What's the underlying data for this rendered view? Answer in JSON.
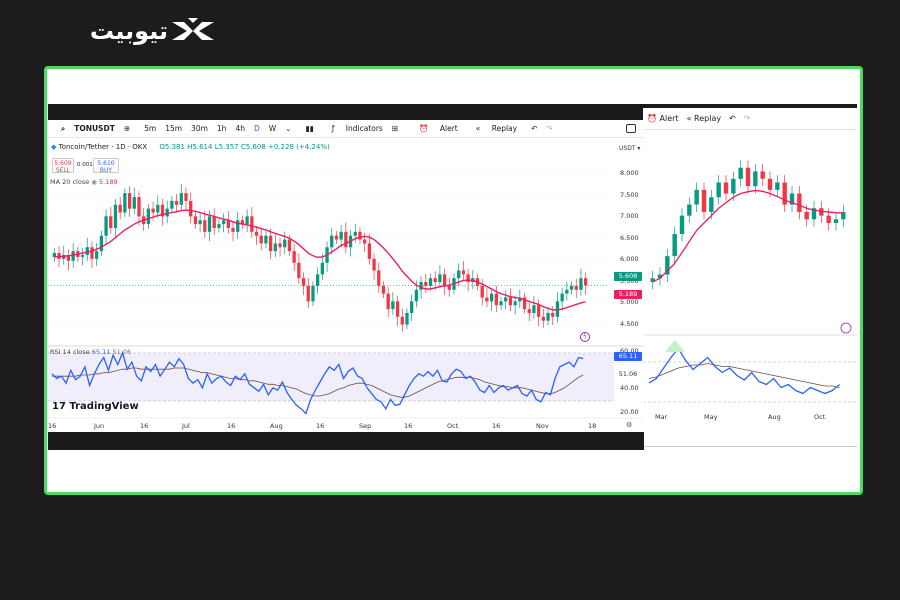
{
  "brand": {
    "name": "تیوبیت"
  },
  "toolbar": {
    "symbol": "TONUSDT",
    "intervals": [
      "5m",
      "15m",
      "30m",
      "1h",
      "4h",
      "D",
      "W"
    ],
    "active_interval": "D",
    "indicators": "Indicators",
    "alert": "Alert",
    "replay": "Replay"
  },
  "back_toolbar": {
    "alert": "Alert",
    "replay": "Replay"
  },
  "legend": {
    "title": "Toncoin/Tether · 1D · OKX",
    "ohlc": "O5.381 H5.614 L5.357 C5.608 +0.228 (+4.24%)",
    "sell_price": "5.609",
    "sell_label": "SELL",
    "spread": "0.001",
    "buy_price": "5.610",
    "buy_label": "BUY",
    "ma_label": "MA 20 close",
    "ma_value": "5.189",
    "currency": "USDT"
  },
  "rsi_legend": {
    "label": "RSI 14 close",
    "rsi": "65.11",
    "ma": "51.06"
  },
  "watermark": "TradingView",
  "colors": {
    "up": "#089981",
    "down": "#f23645",
    "ma": "#e91e63",
    "rsi": "#2962ff",
    "frame": "#4cd964"
  },
  "chart_data": [
    {
      "type": "candlestick",
      "title": "Toncoin/Tether · 1D · OKX",
      "ylim": [
        4.2,
        8.6
      ],
      "price_ticks": [
        "8.000",
        "7.500",
        "7.000",
        "6.500",
        "6.000",
        "5.500",
        "5.000",
        "4.500"
      ],
      "x_ticks": [
        "16",
        "Jun",
        "16",
        "Jul",
        "16",
        "Aug",
        "16",
        "Sep",
        "16",
        "Oct",
        "16",
        "Nov",
        "18"
      ],
      "last_price": "5.608",
      "ma_value": "5.189",
      "close_path": [
        6.45,
        6.3,
        6.4,
        6.25,
        6.5,
        6.35,
        6.4,
        6.6,
        6.3,
        6.5,
        6.9,
        7.4,
        7.1,
        7.7,
        7.5,
        8.0,
        7.6,
        7.9,
        7.4,
        7.2,
        7.6,
        7.5,
        7.7,
        7.4,
        7.6,
        7.8,
        7.7,
        8.0,
        7.8,
        7.4,
        7.2,
        7.3,
        7.0,
        7.4,
        7.1,
        7.2,
        7.3,
        7.1,
        7.0,
        7.3,
        7.2,
        7.4,
        7.0,
        6.9,
        6.7,
        6.9,
        6.5,
        6.7,
        6.6,
        6.8,
        6.5,
        6.2,
        5.8,
        5.6,
        5.2,
        5.6,
        5.9,
        6.2,
        6.6,
        6.9,
        6.8,
        7.0,
        6.6,
        6.9,
        7.0,
        6.8,
        6.7,
        6.3,
        6.0,
        5.6,
        5.4,
        5.0,
        5.2,
        4.8,
        4.6,
        4.9,
        5.2,
        5.5,
        5.7,
        5.6,
        5.8,
        5.7,
        5.9,
        5.6,
        5.5,
        5.8,
        6.0,
        5.9,
        5.7,
        5.8,
        5.6,
        5.3,
        5.2,
        5.4,
        5.1,
        5.2,
        5.3,
        5.1,
        5.2,
        5.3,
        5.0,
        4.9,
        5.1,
        4.8,
        4.7,
        4.9,
        4.8,
        5.2,
        5.4,
        5.5,
        5.6,
        5.5,
        5.8,
        5.61
      ],
      "ma_path": [
        6.35,
        6.36,
        6.37,
        6.38,
        6.4,
        6.42,
        6.45,
        6.48,
        6.5,
        6.55,
        6.6,
        6.68,
        6.75,
        6.85,
        6.95,
        7.05,
        7.12,
        7.2,
        7.26,
        7.3,
        7.34,
        7.38,
        7.42,
        7.45,
        7.47,
        7.5,
        7.52,
        7.55,
        7.56,
        7.55,
        7.53,
        7.5,
        7.46,
        7.43,
        7.4,
        7.36,
        7.33,
        7.3,
        7.26,
        7.22,
        7.2,
        7.18,
        7.15,
        7.12,
        7.08,
        7.05,
        7.0,
        6.96,
        6.92,
        6.88,
        6.83,
        6.76,
        6.67,
        6.56,
        6.45,
        6.38,
        6.34,
        6.35,
        6.4,
        6.48,
        6.56,
        6.65,
        6.7,
        6.76,
        6.82,
        6.86,
        6.88,
        6.86,
        6.8,
        6.7,
        6.58,
        6.45,
        6.3,
        6.15,
        5.98,
        5.85,
        5.72,
        5.62,
        5.56,
        5.52,
        5.52,
        5.55,
        5.58,
        5.6,
        5.62,
        5.66,
        5.7,
        5.74,
        5.75,
        5.74,
        5.7,
        5.65,
        5.58,
        5.52,
        5.45,
        5.4,
        5.36,
        5.32,
        5.3,
        5.28,
        5.24,
        5.2,
        5.16,
        5.12,
        5.06,
        5.02,
        4.98,
        4.98,
        5.0,
        5.04,
        5.08,
        5.12,
        5.16,
        5.19
      ]
    },
    {
      "type": "line",
      "title": "RSI 14 close",
      "ylim": [
        15,
        75
      ],
      "y_ticks": [
        "60.00",
        "40.00",
        "20.00"
      ],
      "rsi_value": "65.11",
      "rsi_ma_value": "51.06",
      "rsi_path": [
        52,
        48,
        50,
        44,
        55,
        47,
        50,
        58,
        42,
        52,
        60,
        66,
        55,
        68,
        60,
        70,
        56,
        62,
        50,
        46,
        58,
        54,
        60,
        50,
        56,
        62,
        58,
        65,
        60,
        48,
        44,
        47,
        40,
        52,
        44,
        48,
        50,
        45,
        42,
        50,
        47,
        52,
        43,
        40,
        37,
        43,
        34,
        40,
        38,
        45,
        36,
        30,
        25,
        22,
        18,
        30,
        38,
        45,
        52,
        58,
        55,
        60,
        48,
        54,
        57,
        50,
        48,
        40,
        35,
        30,
        28,
        22,
        30,
        25,
        26,
        34,
        42,
        48,
        52,
        50,
        54,
        50,
        55,
        46,
        45,
        52,
        56,
        54,
        48,
        50,
        45,
        38,
        36,
        42,
        36,
        40,
        42,
        38,
        40,
        42,
        35,
        33,
        38,
        30,
        28,
        36,
        34,
        48,
        58,
        60,
        62,
        58,
        66,
        65
      ],
      "rsi_ma_path": [
        50,
        50,
        50,
        50,
        50,
        50,
        51,
        51,
        51,
        52,
        52,
        53,
        53,
        54,
        55,
        56,
        56,
        57,
        57,
        56,
        56,
        56,
        56,
        56,
        56,
        56,
        57,
        57,
        57,
        56,
        55,
        54,
        53,
        53,
        52,
        51,
        50,
        49,
        48,
        48,
        47,
        47,
        46,
        46,
        45,
        44,
        43,
        43,
        42,
        42,
        41,
        40,
        39,
        37,
        35,
        34,
        33,
        33,
        34,
        35,
        37,
        39,
        40,
        42,
        43,
        44,
        44,
        43,
        42,
        40,
        38,
        36,
        34,
        33,
        32,
        32,
        33,
        35,
        37,
        39,
        41,
        43,
        45,
        46,
        47,
        48,
        49,
        49,
        49,
        49,
        48,
        47,
        45,
        44,
        43,
        42,
        41,
        41,
        40,
        40,
        40,
        39,
        38,
        37,
        36,
        35,
        35,
        36,
        38,
        40,
        43,
        46,
        49,
        51.06
      ]
    },
    {
      "type": "candlestick",
      "x_ticks": [
        "Mar",
        "May",
        "Aug",
        "Oct"
      ],
      "close_path": [
        5.2,
        5.3,
        5.8,
        6.4,
        6.9,
        7.2,
        7.6,
        7.0,
        7.4,
        7.8,
        7.5,
        7.9,
        8.2,
        7.7,
        8.1,
        7.9,
        7.6,
        7.8,
        7.2,
        7.5,
        7.0,
        6.8,
        7.1,
        6.9,
        6.7,
        6.8,
        7.0
      ],
      "ma_path": [
        5.1,
        5.2,
        5.4,
        5.6,
        5.9,
        6.2,
        6.5,
        6.7,
        6.9,
        7.1,
        7.25,
        7.4,
        7.5,
        7.55,
        7.58,
        7.56,
        7.5,
        7.42,
        7.32,
        7.25,
        7.18,
        7.1,
        7.05,
        7.02,
        7.0,
        6.98,
        6.97
      ]
    },
    {
      "type": "line",
      "rsi_path": [
        45,
        48,
        55,
        62,
        68,
        60,
        54,
        58,
        62,
        56,
        52,
        55,
        50,
        47,
        52,
        46,
        44,
        48,
        42,
        44,
        40,
        38,
        42,
        40,
        38,
        40,
        44
      ],
      "rsi_ma_path": [
        48,
        49,
        51,
        53,
        55,
        56,
        57,
        57,
        58,
        57,
        56,
        56,
        55,
        54,
        53,
        52,
        51,
        50,
        49,
        48,
        47,
        46,
        45,
        44,
        43,
        43,
        42
      ]
    }
  ]
}
